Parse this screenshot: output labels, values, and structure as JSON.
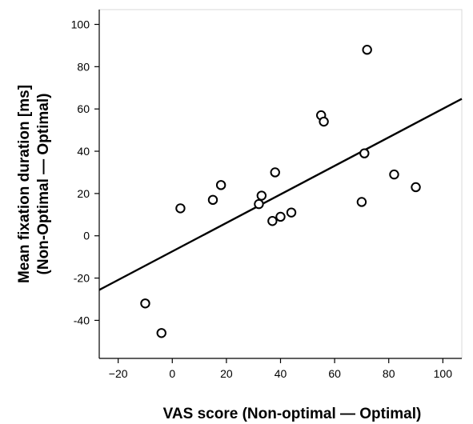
{
  "chart_data": {
    "type": "scatter",
    "xlabel": "VAS score (Non-optimal — Optimal)",
    "ylabel_lines": [
      "Mean fixation duration [ms]",
      "(Non-Optimal — Optimal)"
    ],
    "xlim": [
      -27,
      107
    ],
    "ylim": [
      -58,
      107
    ],
    "xticks": [
      -20,
      0,
      20,
      40,
      60,
      80,
      100
    ],
    "yticks": [
      -40,
      -20,
      0,
      20,
      40,
      60,
      80,
      100
    ],
    "xtick_labels": [
      "−20",
      "0",
      "20",
      "40",
      "60",
      "80",
      "100"
    ],
    "ytick_labels": [
      "-40",
      "-20",
      "0",
      "20",
      "40",
      "60",
      "80",
      "100"
    ],
    "grid": false,
    "points": [
      {
        "x": -10,
        "y": -32
      },
      {
        "x": -4,
        "y": -46
      },
      {
        "x": 3,
        "y": 13
      },
      {
        "x": 15,
        "y": 17
      },
      {
        "x": 18,
        "y": 24
      },
      {
        "x": 32,
        "y": 15
      },
      {
        "x": 33,
        "y": 19
      },
      {
        "x": 37,
        "y": 7
      },
      {
        "x": 38,
        "y": 30
      },
      {
        "x": 40,
        "y": 9
      },
      {
        "x": 44,
        "y": 11
      },
      {
        "x": 55,
        "y": 57
      },
      {
        "x": 56,
        "y": 54
      },
      {
        "x": 70,
        "y": 16
      },
      {
        "x": 71,
        "y": 39
      },
      {
        "x": 72,
        "y": 88
      },
      {
        "x": 82,
        "y": 29
      },
      {
        "x": 90,
        "y": 23
      }
    ],
    "fit_line": {
      "x": [
        -27,
        107
      ],
      "y": [
        -25.6,
        64.8
      ]
    },
    "marker_color": "#000000",
    "line_color": "#000000"
  }
}
